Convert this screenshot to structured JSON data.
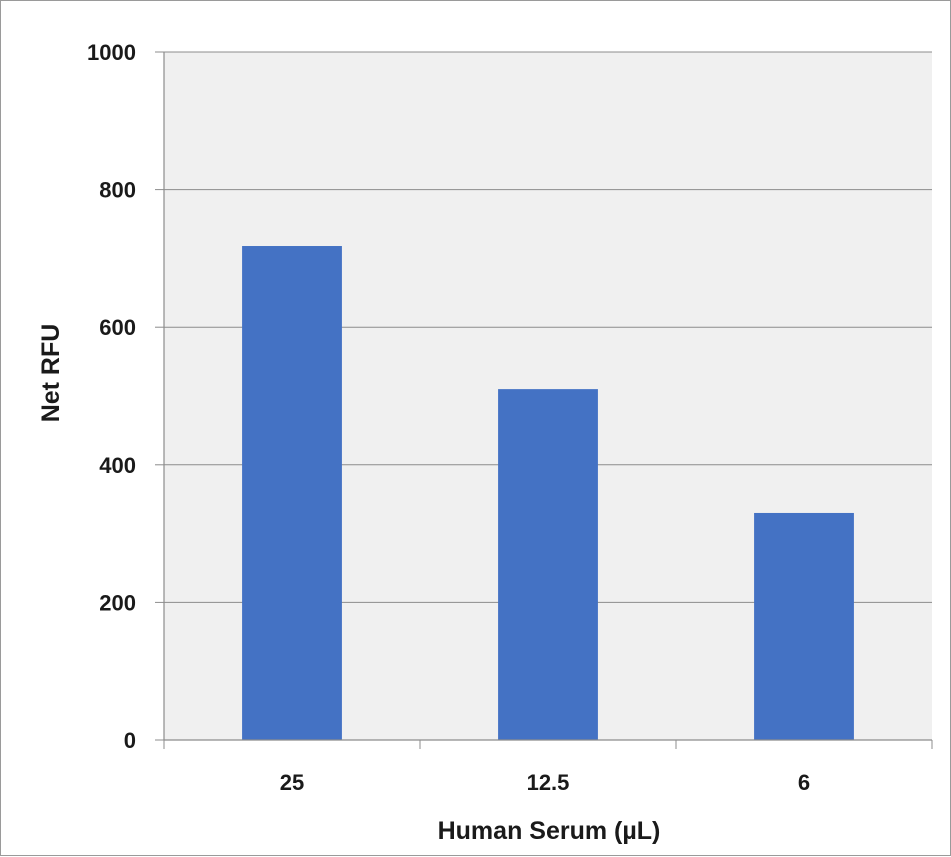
{
  "chart_data": {
    "type": "bar",
    "title": "",
    "xlabel": "Human Serum (µL)",
    "ylabel": "Net RFU",
    "categories": [
      "25",
      "12.5",
      "6"
    ],
    "values": [
      718,
      510,
      330
    ],
    "ylim": [
      0,
      1000
    ],
    "yticks": [
      0,
      200,
      400,
      600,
      800,
      1000
    ],
    "ytick_labels": [
      "0",
      "200",
      "400",
      "600",
      "800",
      "1000"
    ],
    "grid": true,
    "legend": "none",
    "colors": {
      "bar": "#4472c4",
      "plot_background": "#f0f0f0",
      "gridline": "#8c8c8c",
      "axis": "#8c8c8c"
    }
  }
}
